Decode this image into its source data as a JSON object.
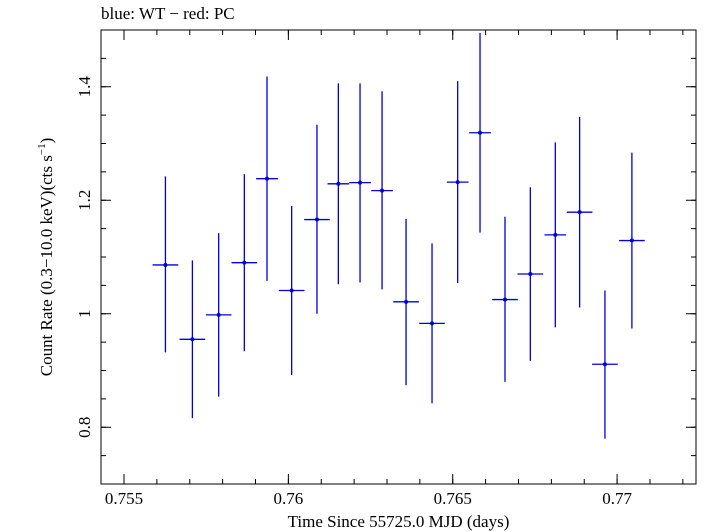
{
  "chart_data": {
    "type": "scatter",
    "title": "blue: WT − red: PC",
    "xlabel": "Time Since 55725.0 MJD (days)",
    "ylabel_main": "Count Rate (0.3−10.0 keV)(cts s",
    "ylabel_sup": "−1",
    "ylabel_end": ")",
    "xlim": [
      0.7543,
      0.7724
    ],
    "ylim": [
      0.7,
      1.5
    ],
    "x_ticks": [
      0.755,
      0.76,
      0.765,
      0.77
    ],
    "x_tick_labels": [
      "0.755",
      "0.76",
      "0.765",
      "0.77"
    ],
    "x_minor_step": 0.001,
    "y_ticks": [
      0.8,
      1.0,
      1.2,
      1.4
    ],
    "y_tick_labels": [
      "0.8",
      "1",
      "1.2",
      "1.4"
    ],
    "y_minor_step": 0.05,
    "grid": false,
    "series": [
      {
        "color": "#0000dd",
        "points": [
          {
            "x": 0.75626,
            "y": 1.086,
            "xerr": 0.00039,
            "ylo": 0.932,
            "yhi": 1.242
          },
          {
            "x": 0.75708,
            "y": 0.955,
            "xerr": 0.00039,
            "ylo": 0.816,
            "yhi": 1.094
          },
          {
            "x": 0.75788,
            "y": 0.998,
            "xerr": 0.00039,
            "ylo": 0.854,
            "yhi": 1.142
          },
          {
            "x": 0.75866,
            "y": 1.09,
            "xerr": 0.00039,
            "ylo": 0.934,
            "yhi": 1.246
          },
          {
            "x": 0.75935,
            "y": 1.238,
            "xerr": 0.00033,
            "ylo": 1.058,
            "yhi": 1.418
          },
          {
            "x": 0.7601,
            "y": 1.041,
            "xerr": 0.00039,
            "ylo": 0.892,
            "yhi": 1.19
          },
          {
            "x": 0.76087,
            "y": 1.166,
            "xerr": 0.00039,
            "ylo": 1.0,
            "yhi": 1.333
          },
          {
            "x": 0.76152,
            "y": 1.229,
            "xerr": 0.00033,
            "ylo": 1.052,
            "yhi": 1.406
          },
          {
            "x": 0.76218,
            "y": 1.231,
            "xerr": 0.00033,
            "ylo": 1.055,
            "yhi": 1.406
          },
          {
            "x": 0.76285,
            "y": 1.217,
            "xerr": 0.00033,
            "ylo": 1.043,
            "yhi": 1.392
          },
          {
            "x": 0.76358,
            "y": 1.021,
            "xerr": 0.00039,
            "ylo": 0.874,
            "yhi": 1.167
          },
          {
            "x": 0.76437,
            "y": 0.983,
            "xerr": 0.00039,
            "ylo": 0.842,
            "yhi": 1.124
          },
          {
            "x": 0.76515,
            "y": 1.232,
            "xerr": 0.00033,
            "ylo": 1.054,
            "yhi": 1.41
          },
          {
            "x": 0.76583,
            "y": 1.319,
            "xerr": 0.00033,
            "ylo": 1.143,
            "yhi": 1.495
          },
          {
            "x": 0.76659,
            "y": 1.025,
            "xerr": 0.00039,
            "ylo": 0.88,
            "yhi": 1.171
          },
          {
            "x": 0.76736,
            "y": 1.07,
            "xerr": 0.00039,
            "ylo": 0.917,
            "yhi": 1.223
          },
          {
            "x": 0.76812,
            "y": 1.139,
            "xerr": 0.00033,
            "ylo": 0.976,
            "yhi": 1.302
          },
          {
            "x": 0.76886,
            "y": 1.179,
            "xerr": 0.00039,
            "ylo": 1.011,
            "yhi": 1.347
          },
          {
            "x": 0.76963,
            "y": 0.911,
            "xerr": 0.00039,
            "ylo": 0.78,
            "yhi": 1.041
          },
          {
            "x": 0.77045,
            "y": 1.129,
            "xerr": 0.00039,
            "ylo": 0.974,
            "yhi": 1.284
          }
        ]
      }
    ]
  }
}
